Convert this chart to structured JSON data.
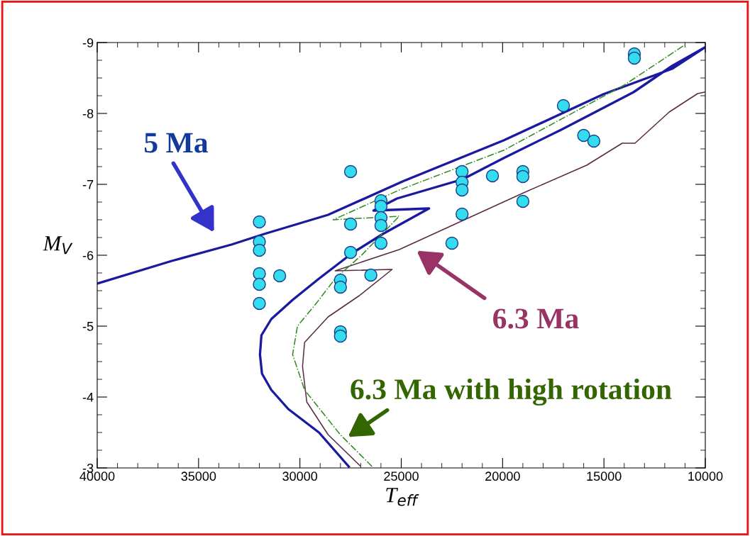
{
  "chart_data": {
    "type": "line",
    "xlabel": "T$_{eff}$",
    "ylabel": "M$_{V}$",
    "xlim": [
      40000,
      10000
    ],
    "ylim": [
      -3,
      -9
    ],
    "xticks": [
      40000,
      35000,
      30000,
      25000,
      20000,
      15000,
      10000
    ],
    "yticks": [
      -3,
      -4,
      -5,
      -6,
      -7,
      -8,
      -9
    ],
    "grid": false,
    "legend": false,
    "series": [
      {
        "color": "#1a1aa0",
        "line_style": "solid",
        "marker": "none",
        "x": [
          27590,
          29060,
          30570,
          31410,
          31870,
          31970,
          31900,
          31410,
          30360,
          29060,
          28010,
          27420,
          25910,
          23630,
          26370,
          25210,
          21980,
          19950,
          17040,
          13540,
          11640,
          10030,
          11640,
          15040,
          19950,
          24860,
          28610,
          31760,
          33380,
          36320,
          40000
        ],
        "values": [
          -3.02,
          -3.5,
          -3.83,
          -4.1,
          -4.33,
          -4.6,
          -4.87,
          -5.1,
          -5.37,
          -5.67,
          -5.9,
          -6.03,
          -6.3,
          -6.66,
          -6.63,
          -6.8,
          -7.07,
          -7.37,
          -7.78,
          -8.3,
          -8.67,
          -8.93,
          -8.63,
          -8.27,
          -7.62,
          -7.05,
          -6.57,
          -6.3,
          -6.15,
          -5.92,
          -5.6
        ]
      },
      {
        "color": "#5a2a45",
        "line_style": "solid",
        "marker": "none",
        "x": [
          27030,
          28610,
          29660,
          29870,
          29770,
          28610,
          27070,
          25450,
          28260,
          25100,
          18970,
          15850,
          14100,
          13470,
          11780,
          10380,
          10030
        ],
        "values": [
          -3.03,
          -3.47,
          -3.93,
          -4.43,
          -4.77,
          -5.13,
          -5.43,
          -5.8,
          -5.78,
          -6.08,
          -6.88,
          -7.27,
          -7.58,
          -7.58,
          -8.02,
          -8.28,
          -8.3
        ]
      },
      {
        "color": "#2e8b1e",
        "line_style": "dashdot",
        "marker": "none",
        "x": [
          26440,
          28010,
          29770,
          30360,
          30120,
          29170,
          28260,
          26960,
          25100,
          28360,
          25100,
          19950,
          14000,
          10940
        ],
        "values": [
          -3.02,
          -3.47,
          -4.1,
          -4.6,
          -5.0,
          -5.33,
          -5.67,
          -6.0,
          -6.55,
          -6.5,
          -6.92,
          -7.48,
          -8.4,
          -8.98
        ]
      },
      {
        "type": "scatter",
        "color": "#33ddee",
        "marker": "circle",
        "x": [
          32000,
          32000,
          32000,
          32000,
          32000,
          32000,
          31000,
          27500,
          27500,
          27500,
          26500,
          28000,
          28000,
          28000,
          28000,
          26000,
          26000,
          26000,
          26000,
          26000,
          22000,
          22000,
          22000,
          22000,
          20500,
          19000,
          19000,
          19000,
          22500,
          17000,
          16000,
          15500,
          13500,
          13500
        ],
        "values": [
          -6.47,
          -6.19,
          -6.07,
          -5.74,
          -5.59,
          -5.32,
          -5.71,
          -7.18,
          -6.44,
          -6.04,
          -5.72,
          -5.65,
          -5.55,
          -4.92,
          -4.86,
          -6.77,
          -6.69,
          -6.53,
          -6.42,
          -6.17,
          -7.18,
          -7.03,
          -6.92,
          -6.58,
          -7.12,
          -7.18,
          -7.11,
          -6.76,
          -6.17,
          -8.11,
          -7.69,
          -7.61,
          -8.84,
          -8.78
        ]
      }
    ],
    "annotations": [
      "5 Ma",
      "6.3 Ma",
      "6.3 Ma with high rotation"
    ]
  }
}
